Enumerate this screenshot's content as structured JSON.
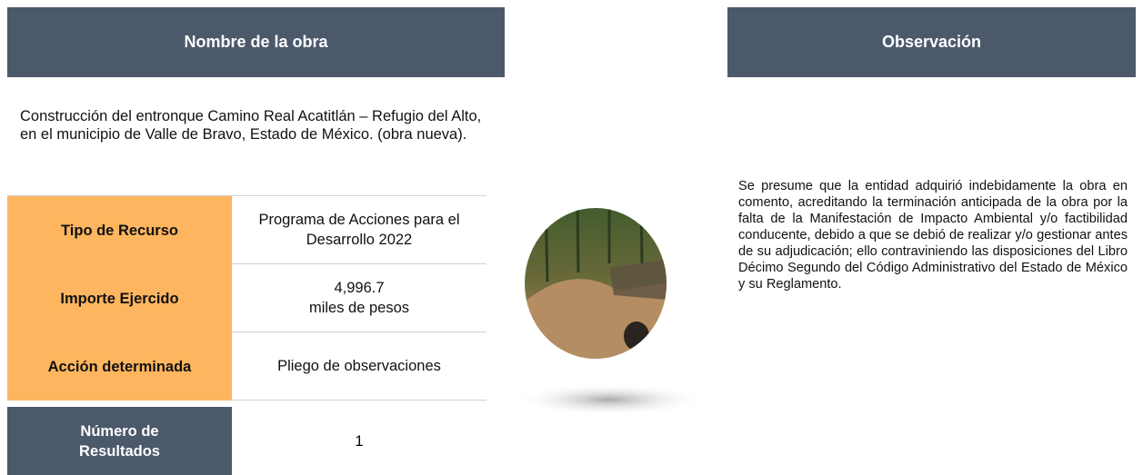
{
  "header": {
    "left_title": "Nombre de la obra",
    "right_title": "Observación"
  },
  "description": "Construcción del entronque Camino Real Acatitlán – Refugio del Alto, en el municipio de Valle de Bravo, Estado de México. (obra nueva).",
  "table": {
    "rows": [
      [
        "Tipo de Recurso",
        "Programa de Acciones para el Desarrollo 2022"
      ],
      [
        "Importe Ejercido",
        "4,996.7",
        "miles de pesos"
      ],
      [
        "Acción determinada",
        "Pliego de observaciones"
      ],
      [
        "Número de Resultados",
        "1"
      ]
    ]
  },
  "observation": "Se presume que la entidad adquirió indebidamente la obra en comento, acreditando la terminación anticipada de la obra por la falta de la Manifestación de Impacto Ambiental y/o factibilidad conducente, debido a que se debió de realizar y/o gestionar antes de su adjudicación; ello contraviniendo las disposiciones del Libro Décimo Segundo del Código Administrativo del Estado de México y su Reglamento."
}
